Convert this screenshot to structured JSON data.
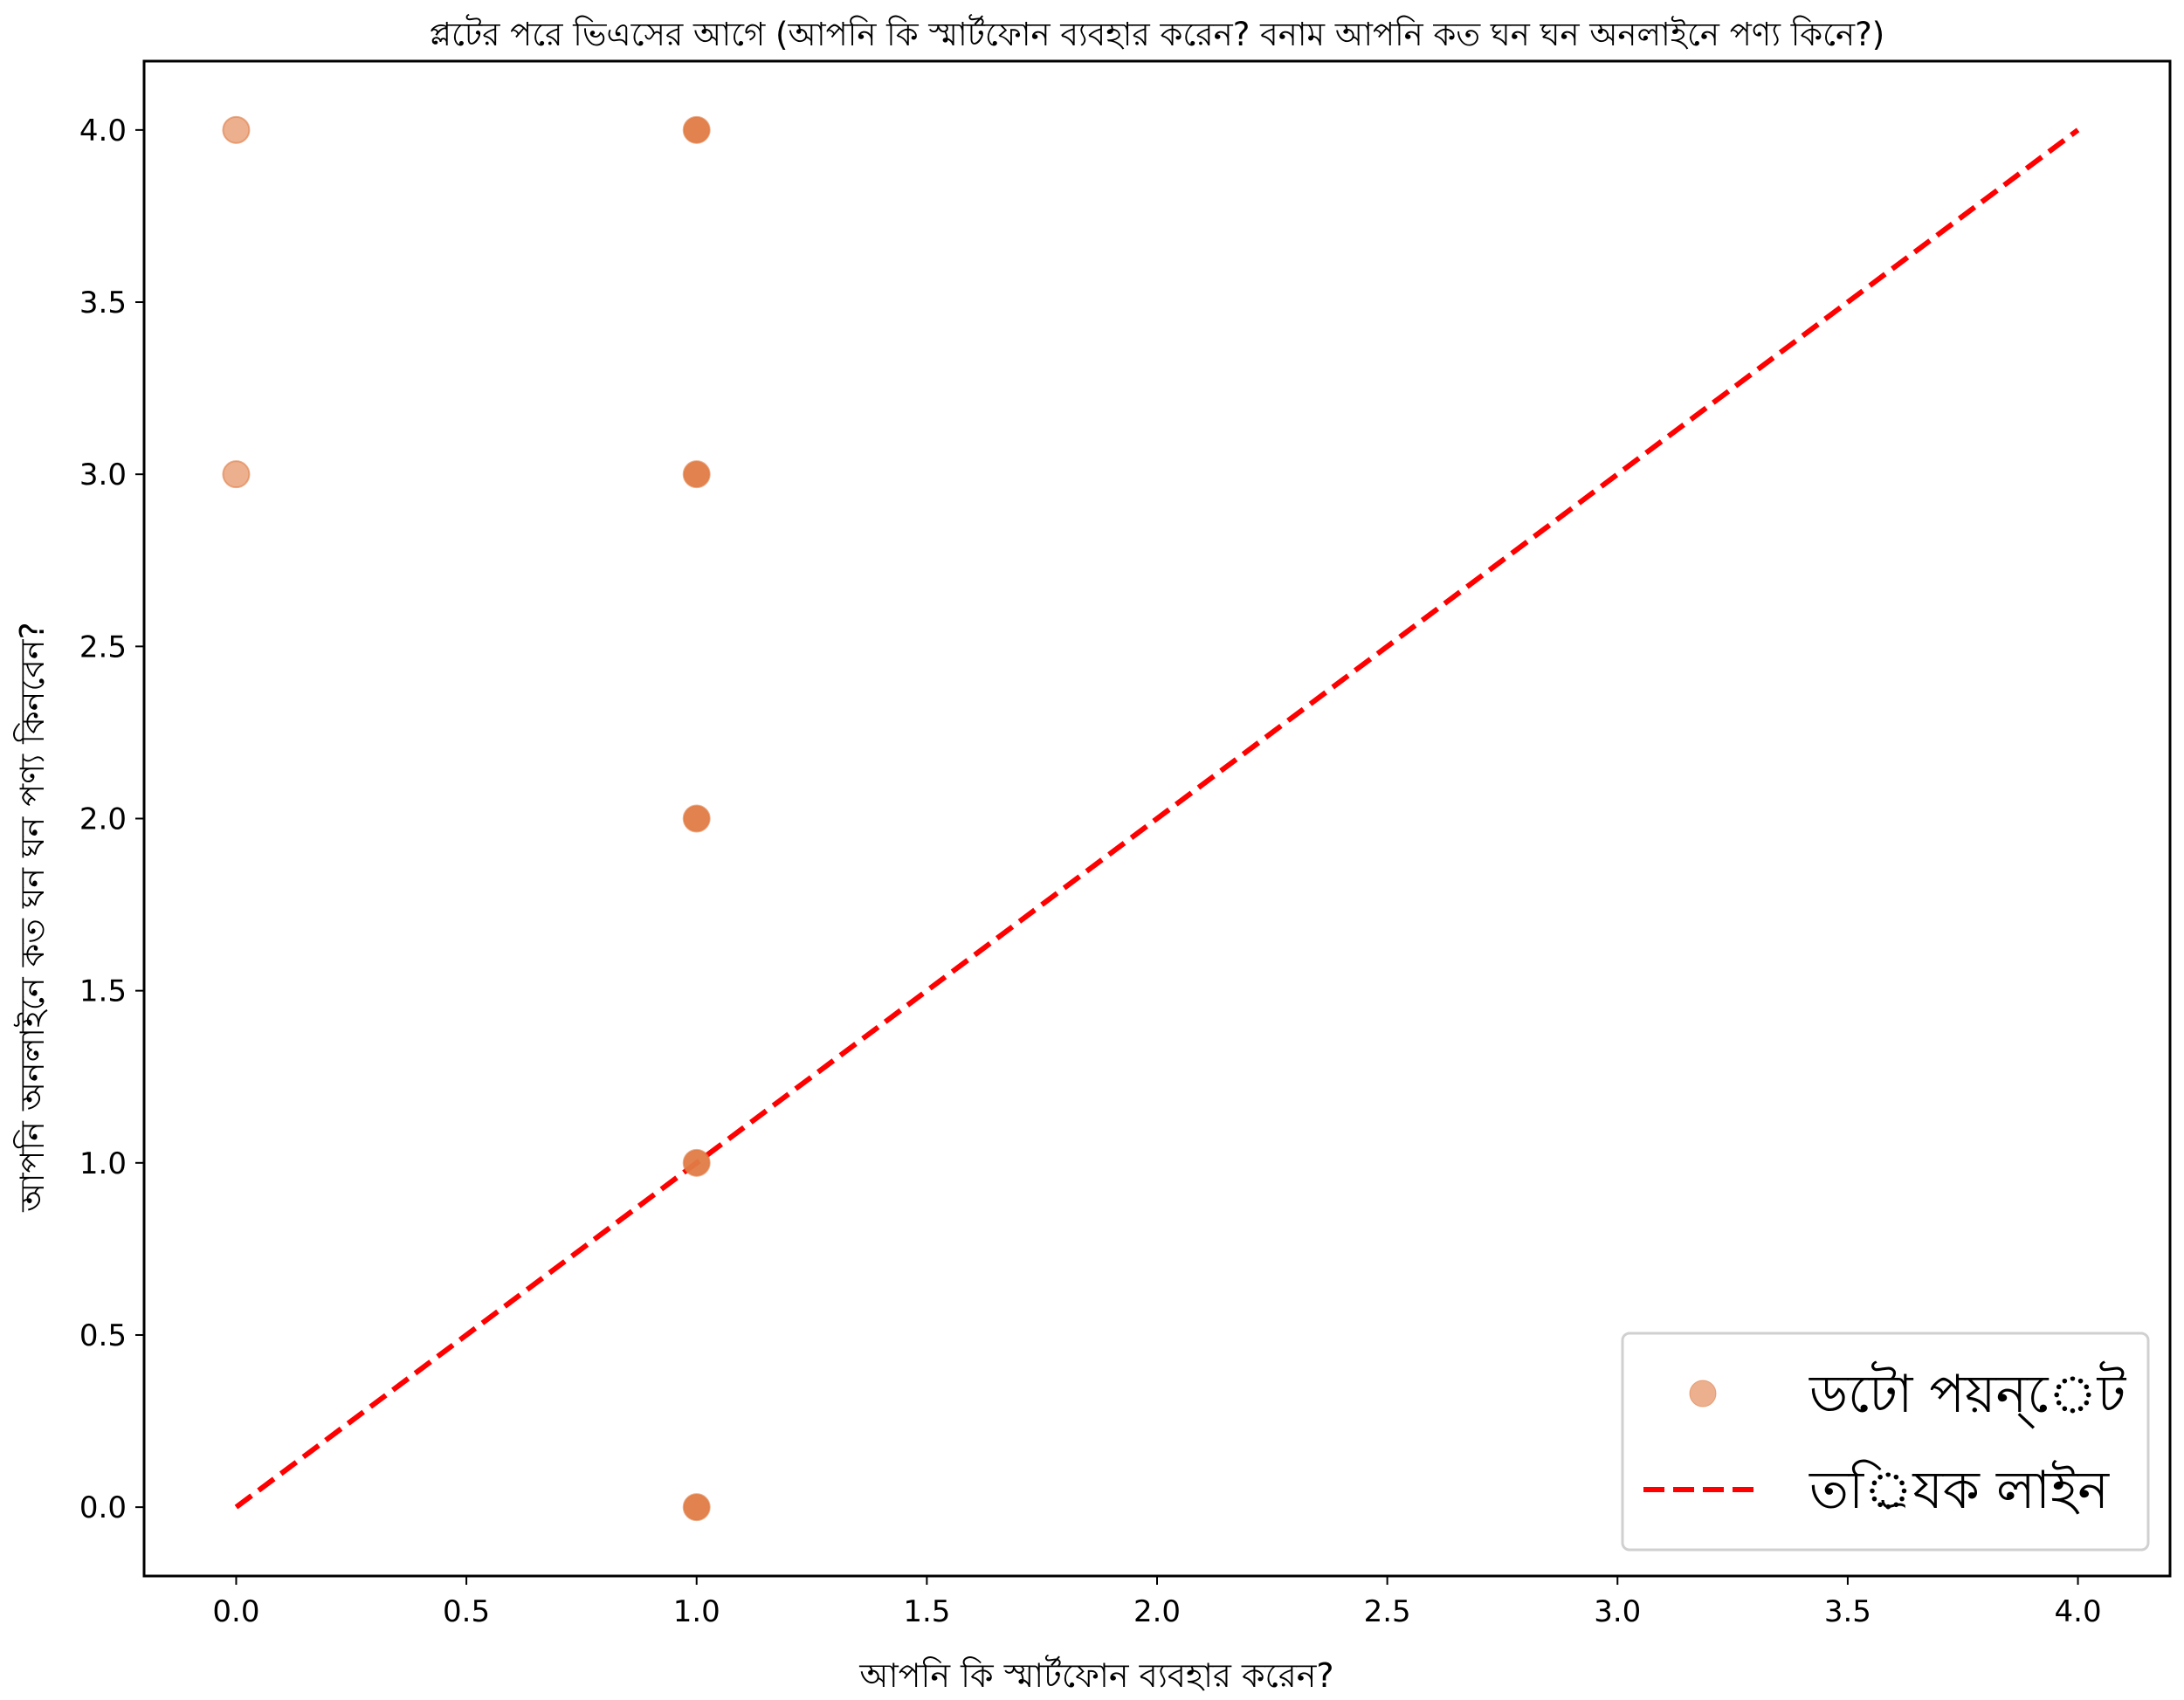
{
  "chart_data": {
    "type": "scatter",
    "title": "প্লটের পরে ভিএসের আগে (আপনি কি স্মার্টফোন ব্যবহার করেন? বনাম আপনি কত ঘন ঘন অনলাইনে পণ্য কিনে?)",
    "xlabel": "আপনি কি স্মার্টফোন ব্যবহার করেন?",
    "ylabel": "আপনি অনলাইনে কত ঘন ঘন পণ্য কিনবেন?",
    "xlim": [
      -0.2,
      4.2
    ],
    "ylim": [
      -0.2,
      4.2
    ],
    "xticks": [
      "0.0",
      "0.5",
      "1.0",
      "1.5",
      "2.0",
      "2.5",
      "3.0",
      "3.5",
      "4.0"
    ],
    "yticks": [
      "0.0",
      "0.5",
      "1.0",
      "1.5",
      "2.0",
      "2.5",
      "3.0",
      "3.5",
      "4.0"
    ],
    "grid": false,
    "legend_position": "bottom-right",
    "series": [
      {
        "name": "ডটো পয়ন্েট",
        "kind": "scatter",
        "color": "#E07B45",
        "points": [
          {
            "x": 0,
            "y": 4,
            "weight": "light"
          },
          {
            "x": 0,
            "y": 3,
            "weight": "light"
          },
          {
            "x": 1,
            "y": 4,
            "weight": "dense"
          },
          {
            "x": 1,
            "y": 3,
            "weight": "dense"
          },
          {
            "x": 1,
            "y": 2,
            "weight": "dense"
          },
          {
            "x": 1,
            "y": 1,
            "weight": "dense"
          },
          {
            "x": 1,
            "y": 0,
            "weight": "dense"
          }
        ]
      },
      {
        "name": "তর্িযক লাইন",
        "kind": "line",
        "style": "dashed",
        "color": "#FF0000",
        "x": [
          0,
          4
        ],
        "y": [
          0,
          4
        ]
      }
    ]
  }
}
